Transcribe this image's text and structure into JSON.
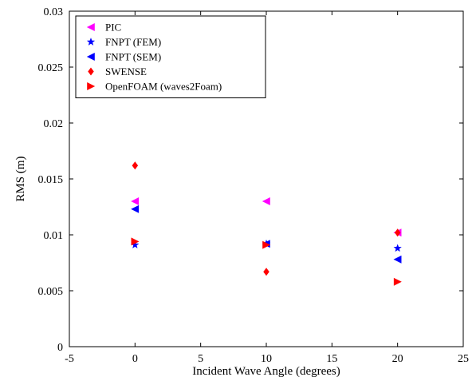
{
  "chart_data": {
    "type": "scatter",
    "xlabel": "Incident Wave Angle (degrees)",
    "ylabel": "RMS (m)",
    "xlim": [
      -5,
      25
    ],
    "ylim": [
      0,
      0.03
    ],
    "xticks": [
      -5,
      0,
      5,
      10,
      15,
      20,
      25
    ],
    "yticks": [
      0,
      0.005,
      0.01,
      0.015,
      0.02,
      0.025,
      0.03
    ],
    "xtick_labels": [
      "-5",
      "0",
      "5",
      "10",
      "15",
      "20",
      "25"
    ],
    "ytick_labels": [
      "0",
      "0.005",
      "0.01",
      "0.015",
      "0.02",
      "0.025",
      "0.03"
    ],
    "grid": false,
    "legend_position": "top-left",
    "series": [
      {
        "name": "PIC",
        "marker": "triangle-left",
        "color": "#ff00ff",
        "points": [
          {
            "x": 0,
            "y": 0.013
          },
          {
            "x": 10,
            "y": 0.013
          },
          {
            "x": 20,
            "y": 0.0102
          }
        ]
      },
      {
        "name": "FNPT (FEM)",
        "marker": "star",
        "color": "#0000ff",
        "points": [
          {
            "x": 0,
            "y": 0.0091
          },
          {
            "x": 10,
            "y": 0.0092
          },
          {
            "x": 20,
            "y": 0.0088
          }
        ]
      },
      {
        "name": "FNPT (SEM)",
        "marker": "triangle-left",
        "color": "#0000ff",
        "points": [
          {
            "x": 0,
            "y": 0.0123
          },
          {
            "x": 10,
            "y": 0.0092
          },
          {
            "x": 20,
            "y": 0.0078
          }
        ]
      },
      {
        "name": "SWENSE",
        "marker": "diamond",
        "color": "#ff0000",
        "points": [
          {
            "x": 0,
            "y": 0.0162
          },
          {
            "x": 10,
            "y": 0.0067
          },
          {
            "x": 20,
            "y": 0.0102
          }
        ]
      },
      {
        "name": "OpenFOAM (waves2Foam)",
        "marker": "triangle-right",
        "color": "#ff0000",
        "points": [
          {
            "x": 0,
            "y": 0.0094
          },
          {
            "x": 10,
            "y": 0.0091
          },
          {
            "x": 20,
            "y": 0.0058
          }
        ]
      }
    ]
  }
}
